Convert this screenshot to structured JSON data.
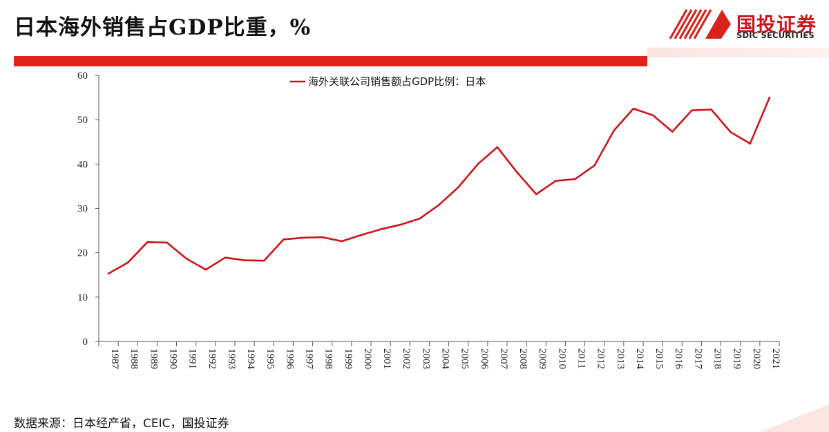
{
  "header": {
    "title": "日本海外销售占GDP比重，%",
    "logo_cn": "国投证券",
    "logo_en": "SDIC SECURITIES"
  },
  "footer": {
    "source": "数据来源：日本经产省，CEIC，国投证券"
  },
  "colors": {
    "accent": "#e2231a",
    "line": "#cc1418"
  },
  "chart_data": {
    "type": "line",
    "title": "",
    "xlabel": "",
    "ylabel": "",
    "ylim": [
      0,
      60
    ],
    "yticks": [
      0,
      10,
      20,
      30,
      40,
      50,
      60
    ],
    "legend": "top-center",
    "grid": false,
    "categories": [
      "1987",
      "1988",
      "1989",
      "1990",
      "1991",
      "1992",
      "1993",
      "1994",
      "1995",
      "1996",
      "1997",
      "1998",
      "1999",
      "2000",
      "2001",
      "2002",
      "2003",
      "2004",
      "2005",
      "2006",
      "2007",
      "2008",
      "2009",
      "2010",
      "2011",
      "2012",
      "2013",
      "2014",
      "2015",
      "2016",
      "2017",
      "2018",
      "2019",
      "2020",
      "2021"
    ],
    "series": [
      {
        "name": "海外关联公司销售额占GDP比例：日本",
        "values": [
          15.3,
          17.8,
          22.4,
          22.3,
          18.7,
          16.2,
          18.9,
          18.3,
          18.2,
          23.0,
          23.4,
          23.5,
          22.6,
          24.0,
          25.3,
          26.3,
          27.7,
          30.8,
          34.8,
          40.0,
          43.8,
          38.2,
          33.2,
          36.2,
          36.6,
          39.7,
          47.6,
          52.5,
          51.0,
          47.3,
          52.1,
          52.3,
          47.2,
          44.6,
          55.0
        ]
      }
    ]
  }
}
